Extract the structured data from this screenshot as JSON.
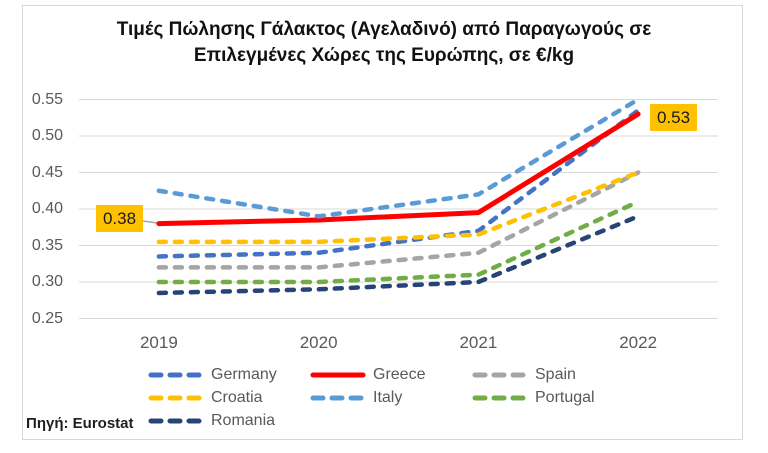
{
  "chart": {
    "title_line1": "Τιμές Πώλησης Γάλακτος (Αγελαδινό) από Παραγωγούς σε",
    "title_line2": "Επιλεγμένες Χώρες της Ευρώπης, σε €/kg",
    "source": "Πηγή: Eurostat"
  },
  "chart_data": {
    "type": "line",
    "title": "Τιμές Πώλησης Γάλακτος (Αγελαδινό) από Παραγωγούς σε Επιλεγμένες Χώρες της Ευρώπης, σε €/kg",
    "xlabel": "",
    "ylabel": "€/kg",
    "x": [
      "2019",
      "2020",
      "2021",
      "2022"
    ],
    "y_ticks": [
      "0.55",
      "0.50",
      "0.45",
      "0.40",
      "0.35",
      "0.30",
      "0.25"
    ],
    "ylim": [
      0.25,
      0.55
    ],
    "grid": true,
    "legend_position": "bottom",
    "series": [
      {
        "name": "Germany",
        "color": "#4472C4",
        "dash": true,
        "values": [
          0.335,
          0.34,
          0.37,
          0.535
        ]
      },
      {
        "name": "Greece",
        "color": "#FF0000",
        "dash": false,
        "values": [
          0.38,
          0.385,
          0.395,
          0.53
        ]
      },
      {
        "name": "Spain",
        "color": "#A5A5A5",
        "dash": true,
        "values": [
          0.32,
          0.32,
          0.34,
          0.45
        ]
      },
      {
        "name": "Croatia",
        "color": "#FFC000",
        "dash": true,
        "values": [
          0.355,
          0.355,
          0.365,
          0.45
        ]
      },
      {
        "name": "Italy",
        "color": "#5B9BD5",
        "dash": true,
        "values": [
          0.425,
          0.39,
          0.42,
          0.55
        ]
      },
      {
        "name": "Portugal",
        "color": "#70AD47",
        "dash": true,
        "values": [
          0.3,
          0.3,
          0.31,
          0.41
        ]
      },
      {
        "name": "Romania",
        "color": "#264478",
        "dash": true,
        "values": [
          0.285,
          0.29,
          0.3,
          0.39
        ]
      }
    ],
    "annotations": [
      {
        "series": "Greece",
        "x": "2019",
        "text": "0.38",
        "box_color": "#FFC000"
      },
      {
        "series": "Greece",
        "x": "2022",
        "text": "0.53",
        "box_color": "#FFC000"
      }
    ],
    "gridline_color": "#D9D9D9",
    "tick_color": "#595959"
  }
}
